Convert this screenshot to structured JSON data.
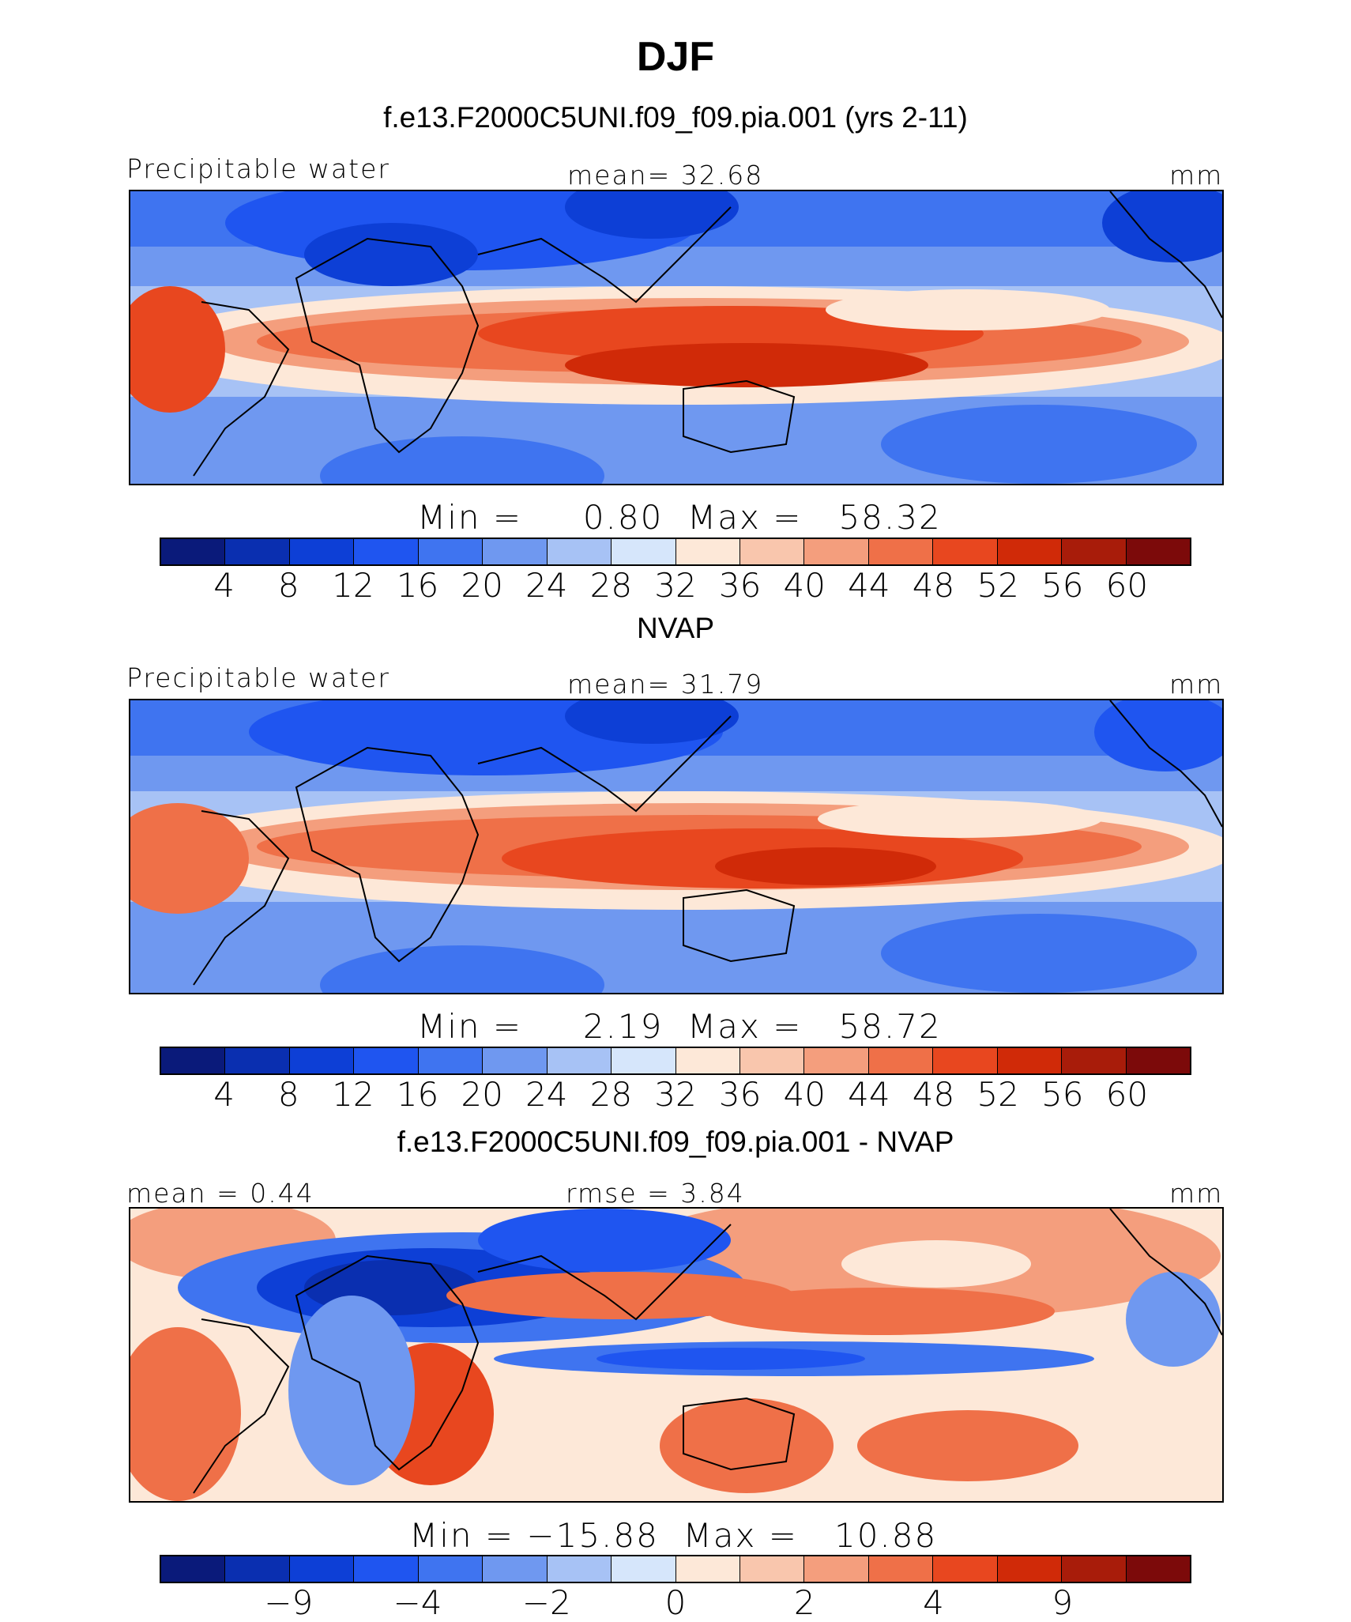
{
  "figure": {
    "title": "DJF",
    "units": "mm"
  },
  "palette": {
    "levels16": [
      "#0a1a7a",
      "#0a2fb0",
      "#0d3fd6",
      "#1f55f0",
      "#3f74f0",
      "#6f98f0",
      "#a7c2f5",
      "#d6e6fb",
      "#fde8d8",
      "#f9c6ad",
      "#f49e7d",
      "#ef7048",
      "#e8471f",
      "#d02a08",
      "#a81c0a",
      "#7c0a0a"
    ],
    "land_outline": "#000000"
  },
  "chart_data": [
    {
      "type": "heatmap",
      "panel_title": "f.e13.F2000C5UNI.f09_f09.pia.001 (yrs 2-11)",
      "left_label": "Precipitable water",
      "center_label": "mean=   32.68",
      "right_label": "mm",
      "minmax_label": "Min =     0.80  Max =   58.32",
      "min": 0.8,
      "max": 58.32,
      "mean": 32.68,
      "colorbar_ticks": [
        "4",
        "8",
        "12",
        "16",
        "20",
        "24",
        "28",
        "32",
        "36",
        "40",
        "44",
        "48",
        "52",
        "56",
        "60"
      ]
    },
    {
      "type": "heatmap",
      "panel_title": "NVAP",
      "left_label": "Precipitable water",
      "center_label": "mean=   31.79",
      "right_label": "mm",
      "minmax_label": "Min =     2.19  Max =   58.72",
      "min": 2.19,
      "max": 58.72,
      "mean": 31.79,
      "colorbar_ticks": [
        "4",
        "8",
        "12",
        "16",
        "20",
        "24",
        "28",
        "32",
        "36",
        "40",
        "44",
        "48",
        "52",
        "56",
        "60"
      ]
    },
    {
      "type": "heatmap",
      "panel_title": "f.e13.F2000C5UNI.f09_f09.pia.001 - NVAP",
      "left_label": "mean =    0.44",
      "center_label": "rmse =    3.84",
      "right_label": "mm",
      "minmax_label": "Min = −15.88  Max =   10.88",
      "min": -15.88,
      "max": 10.88,
      "mean": 0.44,
      "rmse": 3.84,
      "colorbar_ticks": [
        "−9",
        "−4",
        "−2",
        "0",
        "2",
        "4",
        "9"
      ]
    }
  ]
}
